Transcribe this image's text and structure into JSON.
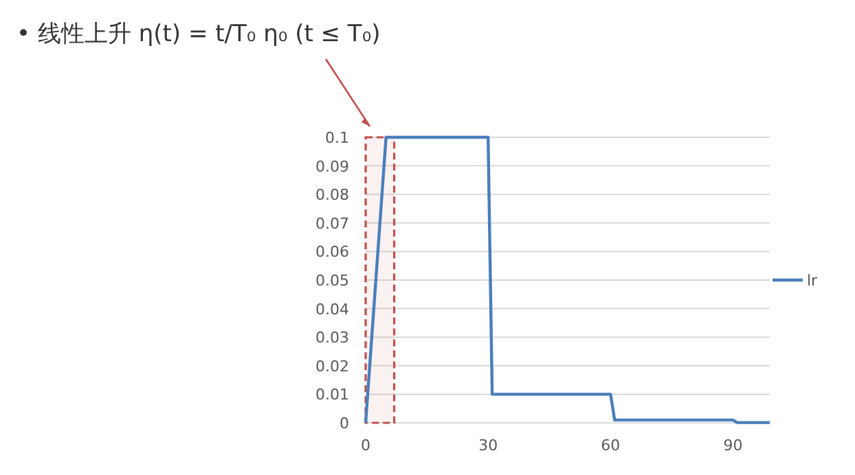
{
  "chart_data": {
    "type": "line",
    "title": "• 线性上升 η(t) = t/T₀ η₀  (t ≤ T₀)",
    "x": [
      0,
      5,
      30,
      31,
      60,
      61,
      90,
      91,
      99
    ],
    "series": [
      {
        "name": "lr",
        "color": "#4a7ebb",
        "values": [
          0,
          0.1,
          0.1,
          0.01,
          0.01,
          0.001,
          0.001,
          0.0001,
          0.0001
        ]
      }
    ],
    "xlim": [
      0,
      99
    ],
    "xticks": [
      0,
      30,
      60,
      90
    ],
    "ylim": [
      0,
      0.1
    ],
    "yticks": [
      0,
      0.01,
      0.02,
      0.03,
      0.04,
      0.05,
      0.06,
      0.07,
      0.08,
      0.09,
      0.1
    ],
    "grid": "y",
    "legend": "right",
    "marker": "none",
    "line_style": "solid",
    "bands": [
      {
        "axis": "x",
        "from": 0,
        "to": 7,
        "color": "#c0504d"
      }
    ]
  }
}
